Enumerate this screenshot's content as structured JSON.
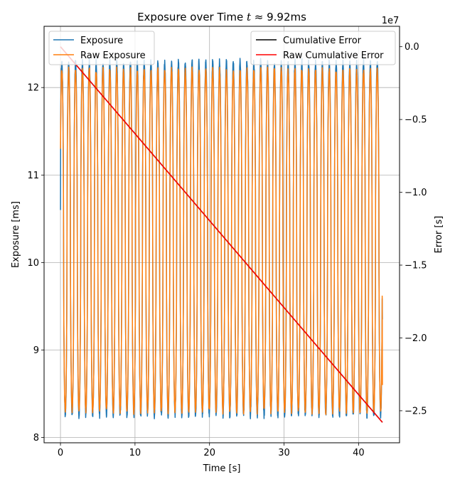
{
  "chart_data": {
    "type": "line",
    "title_prefix": "Exposure over Time ",
    "title_var": "t",
    "title_suffix": " ≈ 9.92ms",
    "xlabel": "Time [s]",
    "ylabel_left": "Exposure [ms]",
    "ylabel_right": "Error [s]",
    "right_axis_offset_text": "1e7",
    "xlim": [
      -2.2,
      45.5
    ],
    "ylim_left": [
      7.94,
      12.7
    ],
    "ylim_right": [
      -2.72,
      0.14
    ],
    "xticks": [
      0,
      10,
      20,
      30,
      40
    ],
    "xtick_labels": [
      "0",
      "10",
      "20",
      "30",
      "40"
    ],
    "yticks_left": [
      8,
      9,
      10,
      11,
      12
    ],
    "ytick_labels_left": [
      "8",
      "9",
      "10",
      "11",
      "12"
    ],
    "yticks_right": [
      0.0,
      -0.5,
      -1.0,
      -1.5,
      -2.0,
      -2.5
    ],
    "ytick_labels_right": [
      "0.0",
      "−0.5",
      "−1.0",
      "−1.5",
      "−2.0",
      "−2.5"
    ],
    "grid": true,
    "legend_left_placement": "upper-left",
    "legend_right_placement": "upper-right",
    "exposure_signal": {
      "t_start": 0.0,
      "t_end": 43.2,
      "period_s": 0.92,
      "max": 12.3,
      "min": 8.25,
      "start_value": 10.6,
      "end_value": 9.35
    },
    "raw_exposure_signal": {
      "t_start": 0.0,
      "t_end": 43.2,
      "period_s": 0.92,
      "max": 12.2,
      "min": 8.3,
      "start_value": 11.3,
      "end_value": 8.6
    },
    "cumulative_error": {
      "x": [
        0.0,
        43.2
      ],
      "y": [
        0.0,
        -2.58
      ]
    },
    "raw_cumulative_error": {
      "x": [
        0.0,
        43.2
      ],
      "y": [
        0.0,
        -2.58
      ]
    },
    "series": [
      {
        "name": "Exposure",
        "color": "#1f77b4",
        "axis": "left"
      },
      {
        "name": "Raw Exposure",
        "color": "#ff7f0e",
        "axis": "left"
      },
      {
        "name": "Cumulative Error",
        "color": "#000000",
        "axis": "right"
      },
      {
        "name": "Raw Cumulative Error",
        "color": "#ff0000",
        "axis": "right"
      }
    ]
  }
}
